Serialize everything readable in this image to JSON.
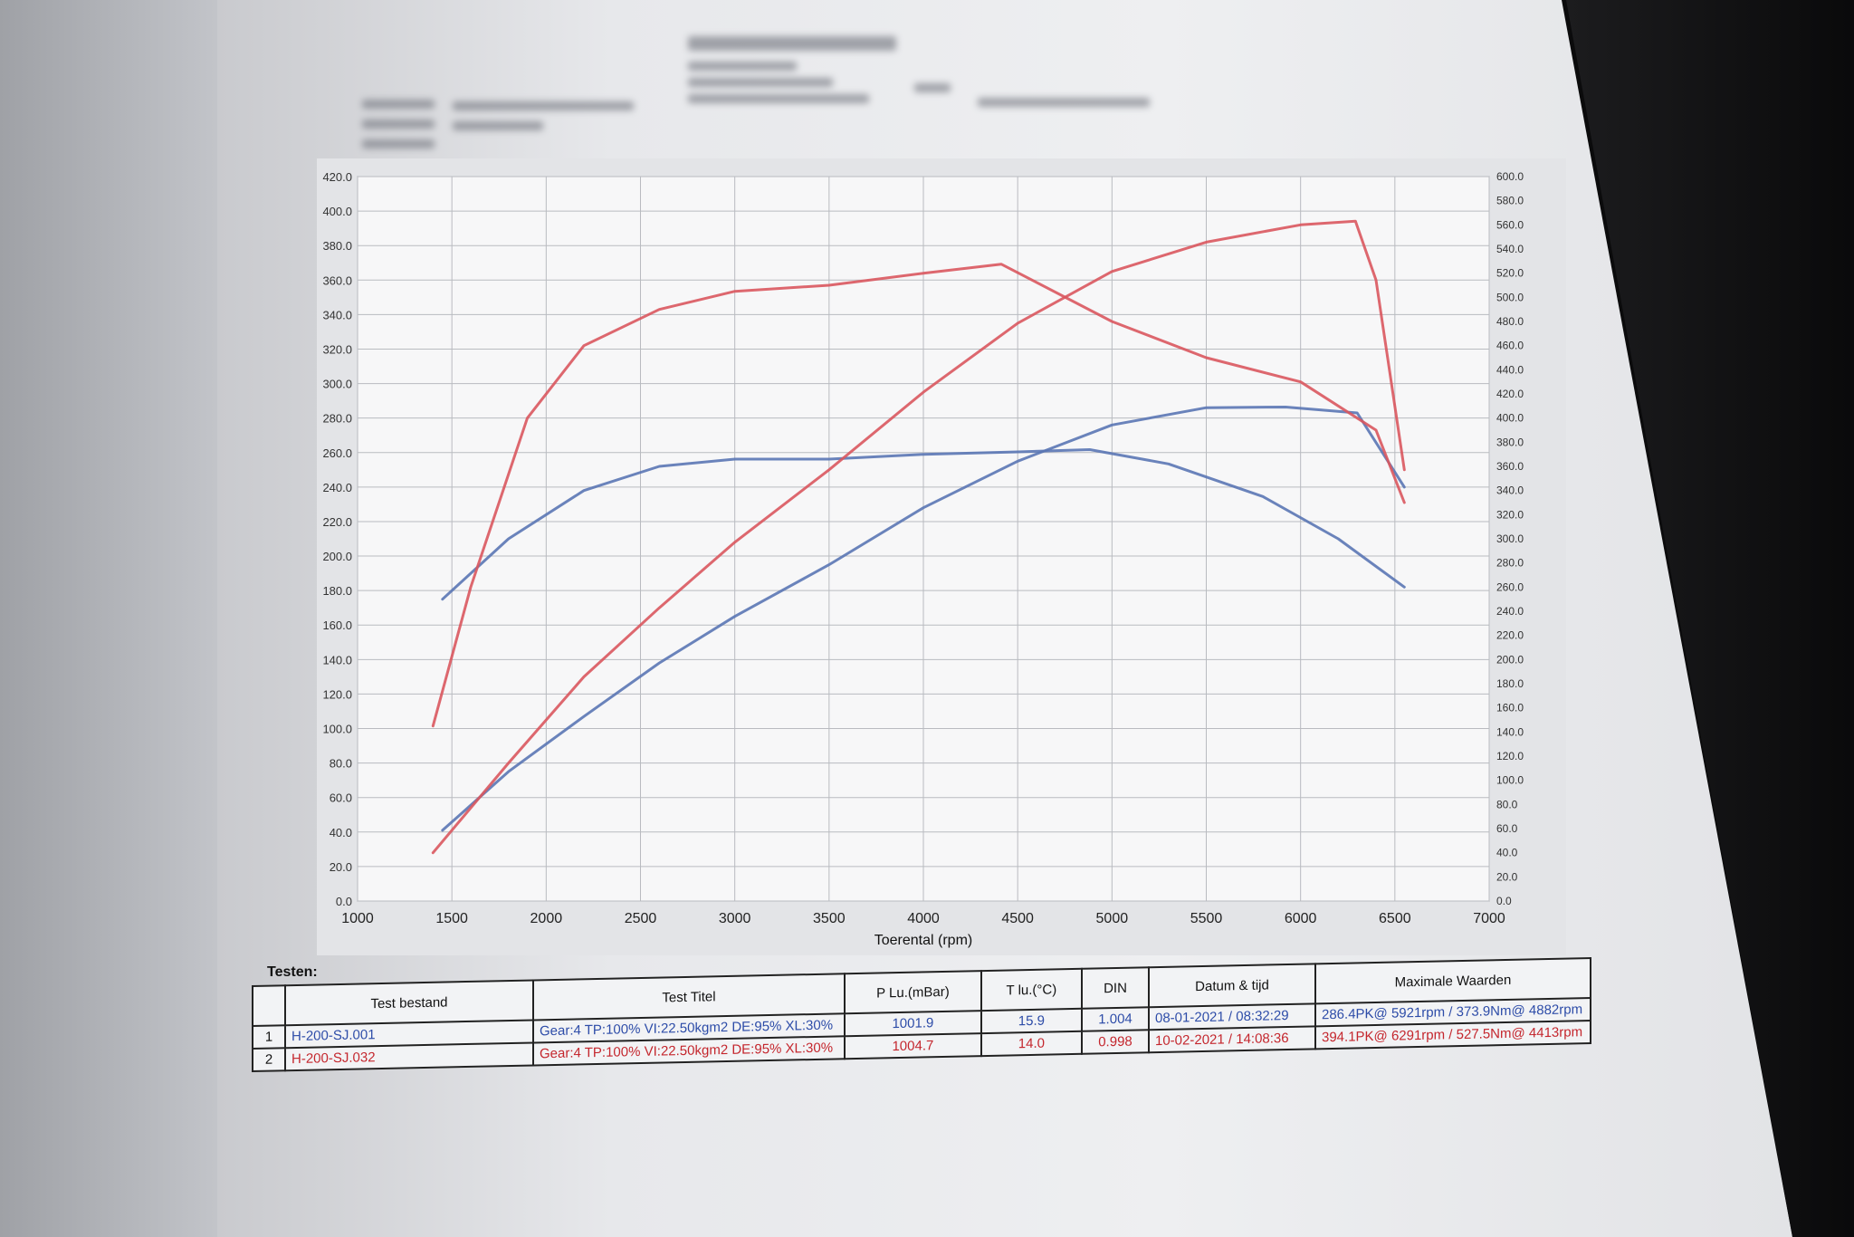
{
  "chart_data": {
    "type": "line",
    "xlabel": "Toerental (rpm)",
    "xlim": [
      1000,
      7000
    ],
    "x_ticks": [
      "1000",
      "1500",
      "2000",
      "2500",
      "3000",
      "3500",
      "4000",
      "4500",
      "5000",
      "5500",
      "6000",
      "6500",
      "7000"
    ],
    "ylim_left": [
      0,
      420
    ],
    "y_ticks_left": [
      "0.0",
      "20.0",
      "40.0",
      "60.0",
      "80.0",
      "100.0",
      "120.0",
      "140.0",
      "160.0",
      "180.0",
      "200.0",
      "220.0",
      "240.0",
      "260.0",
      "280.0",
      "300.0",
      "320.0",
      "340.0",
      "360.0",
      "380.0",
      "400.0",
      "420.0"
    ],
    "ylim_right": [
      0,
      600
    ],
    "y_ticks_right": [
      "0.0",
      "20.0",
      "40.0",
      "60.0",
      "80.0",
      "100.0",
      "120.0",
      "140.0",
      "160.0",
      "180.0",
      "200.0",
      "220.0",
      "240.0",
      "260.0",
      "280.0",
      "300.0",
      "320.0",
      "340.0",
      "360.0",
      "380.0",
      "400.0",
      "420.0",
      "440.0",
      "460.0",
      "480.0",
      "500.0",
      "520.0",
      "540.0",
      "560.0",
      "580.0",
      "600.0"
    ],
    "grid": true,
    "series": [
      {
        "color": "#5a76b4",
        "axis": "left",
        "x": [
          1450,
          1800,
          2200,
          2600,
          3000,
          3500,
          4000,
          4500,
          5000,
          5500,
          5921,
          6300,
          6550
        ],
        "y": [
          41,
          75,
          107,
          138,
          165,
          195,
          228,
          255,
          276,
          286,
          286.4,
          283,
          240
        ]
      },
      {
        "color": "#5a76b4",
        "axis": "right",
        "x": [
          1450,
          1800,
          2200,
          2600,
          3000,
          3500,
          4000,
          4500,
          4882,
          5300,
          5800,
          6200,
          6550
        ],
        "y": [
          250,
          300,
          340,
          360,
          366,
          366,
          370,
          372,
          373.9,
          362,
          335,
          300,
          260
        ]
      },
      {
        "color": "#d9575e",
        "axis": "left",
        "x": [
          1400,
          1800,
          2200,
          2600,
          3000,
          3500,
          4000,
          4500,
          5000,
          5500,
          6000,
          6291,
          6400,
          6550
        ],
        "y": [
          28,
          80,
          130,
          170,
          208,
          250,
          295,
          335,
          365,
          382,
          392,
          394.1,
          360,
          250
        ]
      },
      {
        "color": "#d9575e",
        "axis": "right",
        "x": [
          1400,
          1600,
          1900,
          2200,
          2600,
          3000,
          3500,
          4000,
          4413,
          5000,
          5500,
          6000,
          6400,
          6550
        ],
        "y": [
          145,
          260,
          400,
          460,
          490,
          505,
          510,
          520,
          527.5,
          480,
          450,
          430,
          390,
          330
        ]
      }
    ]
  },
  "testen_label": "Testen:",
  "table": {
    "headers": [
      "",
      "Test bestand",
      "Test Titel",
      "P Lu.(mBar)",
      "T lu.(°C)",
      "DIN",
      "Datum & tijd",
      "Maximale Waarden"
    ],
    "rows": [
      {
        "idx": "1",
        "bestand": "H-200-SJ.001",
        "titel": "Gear:4 TP:100% VI:22.50kgm2 DE:95% XL:30%",
        "p": "1001.9",
        "t": "15.9",
        "din": "1.004",
        "datum": "08-01-2021 / 08:32:29",
        "max": "286.4PK@ 5921rpm / 373.9Nm@ 4882rpm"
      },
      {
        "idx": "2",
        "bestand": "H-200-SJ.032",
        "titel": "Gear:4 TP:100% VI:22.50kgm2 DE:95% XL:30%",
        "p": "1004.7",
        "t": "14.0",
        "din": "0.998",
        "datum": "10-02-2021 / 14:08:36",
        "max": "394.1PK@ 6291rpm / 527.5Nm@ 4413rpm"
      }
    ]
  }
}
